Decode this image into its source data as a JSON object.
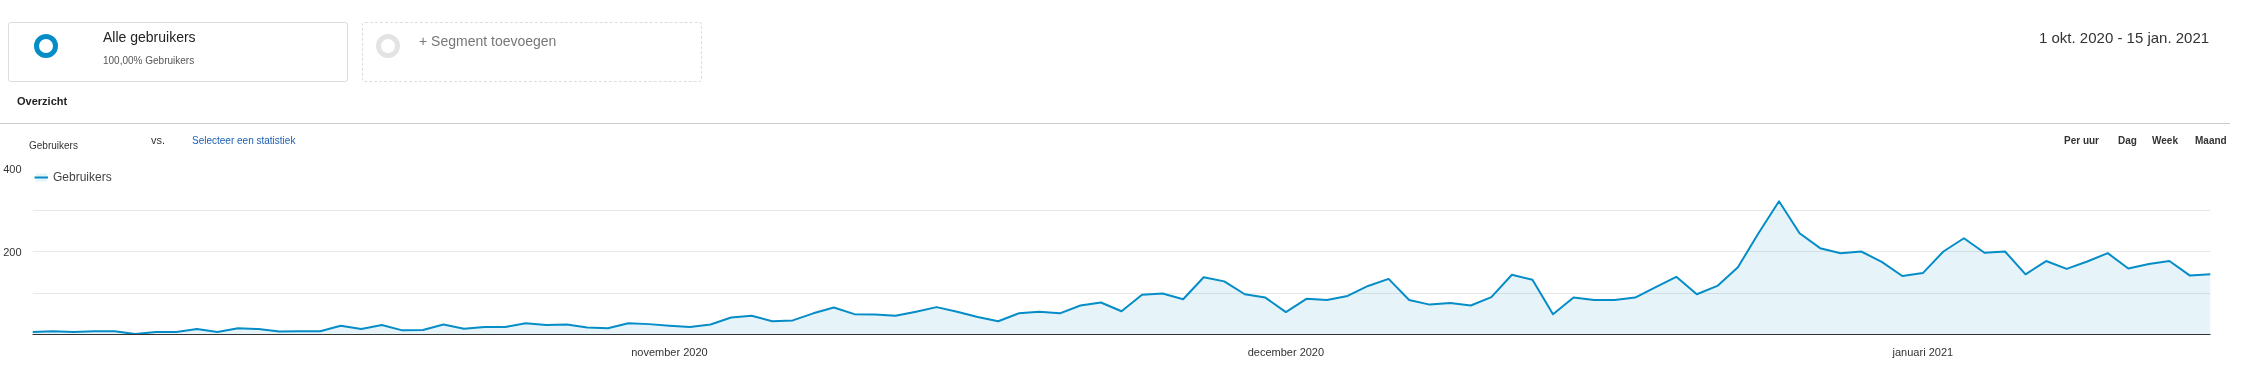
{
  "chart_data": {
    "type": "area",
    "annotations": [
      "Alle gebruikers",
      "100,00% Gebruikers",
      "+ Segment toevoegen",
      "Overzicht",
      "Gebruikers",
      "vs.",
      "Selecteer een statistiek",
      "1 okt. 2020 - 15 jan. 2021",
      "Per uur",
      "Dag",
      "Week",
      "Maand"
    ],
    "x": [
      "2020-10-01",
      "2020-10-02",
      "2020-10-03",
      "2020-10-04",
      "2020-10-05",
      "2020-10-06",
      "2020-10-07",
      "2020-10-08",
      "2020-10-09",
      "2020-10-10",
      "2020-10-11",
      "2020-10-12",
      "2020-10-13",
      "2020-10-14",
      "2020-10-15",
      "2020-10-16",
      "2020-10-17",
      "2020-10-18",
      "2020-10-19",
      "2020-10-20",
      "2020-10-21",
      "2020-10-22",
      "2020-10-23",
      "2020-10-24",
      "2020-10-25",
      "2020-10-26",
      "2020-10-27",
      "2020-10-28",
      "2020-10-29",
      "2020-10-30",
      "2020-10-31",
      "2020-11-01",
      "2020-11-02",
      "2020-11-03",
      "2020-11-04",
      "2020-11-05",
      "2020-11-06",
      "2020-11-07",
      "2020-11-08",
      "2020-11-09",
      "2020-11-10",
      "2020-11-11",
      "2020-11-12",
      "2020-11-13",
      "2020-11-14",
      "2020-11-15",
      "2020-11-16",
      "2020-11-17",
      "2020-11-18",
      "2020-11-19",
      "2020-11-20",
      "2020-11-21",
      "2020-11-22",
      "2020-11-23",
      "2020-11-24",
      "2020-11-25",
      "2020-11-26",
      "2020-11-27",
      "2020-11-28",
      "2020-11-29",
      "2020-11-30",
      "2020-12-01",
      "2020-12-02",
      "2020-12-03",
      "2020-12-04",
      "2020-12-05",
      "2020-12-06",
      "2020-12-07",
      "2020-12-08",
      "2020-12-09",
      "2020-12-10",
      "2020-12-11",
      "2020-12-12",
      "2020-12-13",
      "2020-12-14",
      "2020-12-15",
      "2020-12-16",
      "2020-12-17",
      "2020-12-18",
      "2020-12-19",
      "2020-12-20",
      "2020-12-21",
      "2020-12-22",
      "2020-12-23",
      "2020-12-24",
      "2020-12-25",
      "2020-12-26",
      "2020-12-27",
      "2020-12-28",
      "2020-12-29",
      "2020-12-30",
      "2020-12-31",
      "2021-01-01",
      "2021-01-02",
      "2021-01-03",
      "2021-01-04",
      "2021-01-05",
      "2021-01-06",
      "2021-01-07",
      "2021-01-08",
      "2021-01-09",
      "2021-01-10",
      "2021-01-11",
      "2021-01-12",
      "2021-01-13",
      "2021-01-14",
      "2021-01-15"
    ],
    "series": [
      {
        "name": "Gebruikers",
        "color": "#058dc7",
        "values": [
          6,
          8,
          6,
          8,
          8,
          1,
          6,
          6,
          13,
          6,
          15,
          13,
          7,
          8,
          8,
          21,
          13,
          23,
          10,
          11,
          24,
          14,
          18,
          18,
          27,
          23,
          24,
          17,
          15,
          27,
          25,
          21,
          18,
          24,
          41,
          45,
          32,
          34,
          51,
          65,
          49,
          48,
          45,
          55,
          66,
          55,
          42,
          32,
          51,
          55,
          51,
          70,
          77,
          56,
          96,
          99,
          85,
          138,
          128,
          97,
          89,
          54,
          86,
          83,
          93,
          117,
          134,
          83,
          72,
          76,
          70,
          90,
          144,
          132,
          49,
          89,
          83,
          83,
          89,
          114,
          139,
          97,
          117,
          162,
          244,
          321,
          244,
          208,
          196,
          200,
          175,
          141,
          148,
          200,
          232,
          197,
          200,
          145,
          177,
          158,
          176,
          196,
          159,
          170,
          177,
          142,
          145
        ]
      }
    ],
    "xlim": [
      "2020-10-01",
      "2021-01-15"
    ],
    "xticks": [
      {
        "value": "2020-11-01",
        "label": "november 2020"
      },
      {
        "value": "2020-12-01",
        "label": "december 2020"
      },
      {
        "value": "2021-01-01",
        "label": "januari 2021"
      }
    ],
    "ylim": [
      0,
      400
    ],
    "yticks": [
      {
        "value": 0,
        "label": null
      },
      {
        "value": 100,
        "label": null
      },
      {
        "value": 200,
        "label": "200"
      },
      {
        "value": 300,
        "label": null
      },
      {
        "value": 400,
        "label": "400"
      }
    ],
    "grid": "y",
    "legend": "top left",
    "marker": "none",
    "line_style": "solid"
  }
}
